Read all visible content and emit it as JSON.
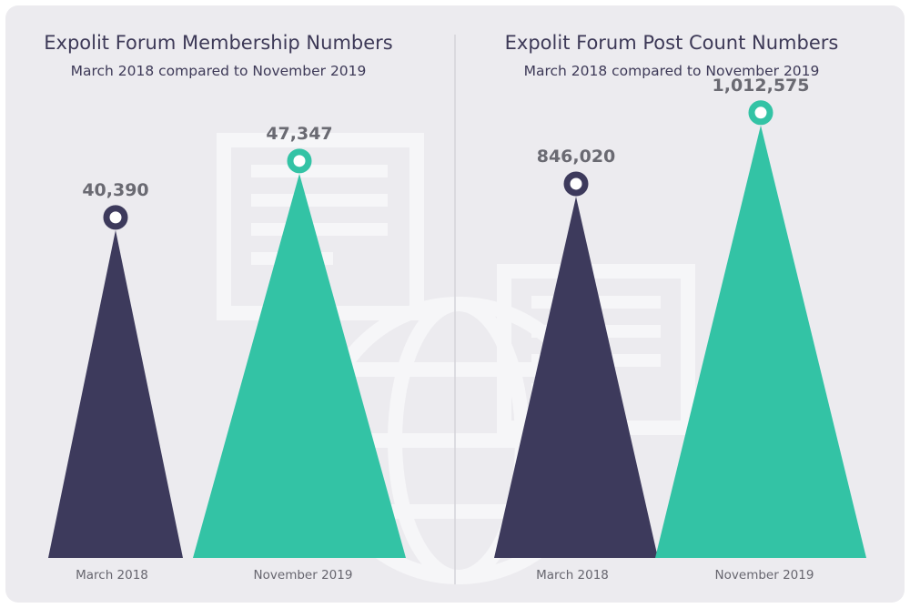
{
  "colors": {
    "background": "#ecebef",
    "march": "#3d3a5c",
    "november": "#33c3a5",
    "title": "#3d3957",
    "divider": "#d4d3d9",
    "watermark": "#f6f6f8"
  },
  "chart_data": [
    {
      "type": "bar",
      "title": "Expolit Forum Membership Numbers",
      "subtitle": "March 2018 compared to November 2019",
      "categories": [
        "March 2018",
        "November 2019"
      ],
      "values": [
        40390,
        47347
      ],
      "value_labels": [
        "40,390",
        "47,347"
      ],
      "ylim": [
        0,
        60000
      ],
      "grid": false
    },
    {
      "type": "bar",
      "title": "Expolit Forum Post Count Numbers",
      "subtitle": "March 2018 compared to November 2019",
      "categories": [
        "March 2018",
        "November 2019"
      ],
      "values": [
        846020,
        1012575
      ],
      "value_labels": [
        "846,020",
        "1,012,575"
      ],
      "ylim": [
        0,
        1140000
      ],
      "grid": false
    }
  ]
}
